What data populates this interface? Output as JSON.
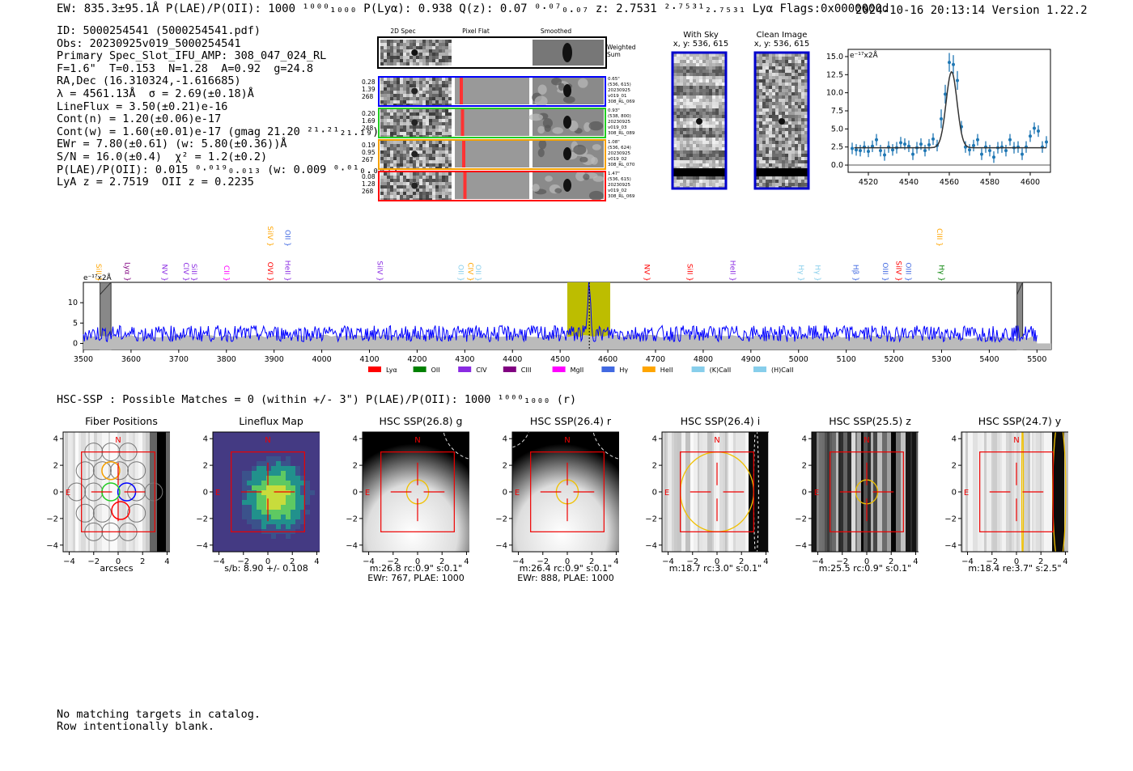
{
  "header": {
    "line": "EW: 835.3±95.1Å  P(LAE)/P(OII): 1000 ¹⁰⁰⁰₁₀₀₀  P(Lyα): 0.938  Q(z): 0.07 ⁰·⁰⁷₀.₀₇  z: 2.7531 ²·⁷⁵³¹₂.₇₅₃₁ Lyα  Flags:0x0000000d",
    "datestamp": "2024-10-16 20:13:14  Version 1.22.2"
  },
  "info": {
    "lines": [
      "ID: 5000254541 (5000254541.pdf)",
      "Obs: 20230925v019_5000254541",
      "Primary Spec_Slot_IFU_AMP: 308_047_024_RL",
      "F=1.6\"  T=0.153  N=1.28  A=0.92  g=24.8",
      "RA,Dec (16.310324,-1.616685)",
      "λ = 4561.13Å  σ = 2.69(±0.18)Å",
      "LineFlux = 3.50(±0.21)e-16",
      "Cont(n) = 1.20(±0.06)e-17",
      "Cont(w) = 1.60(±0.01)e-17 (gmag 21.20 ²¹·²¹₂₁.₁₉)",
      "EWr = 7.80(±0.61) (w: 5.80(±0.36))Å",
      "S/N = 16.0(±0.4)  χ² = 1.2(±0.2)",
      "P(LAE)/P(OII): 0.015 ⁰·⁰¹⁹₀.₀₁₃ (w: 0.009 ⁰·⁰¹₀.₀₀₇)",
      "LyA z = 2.7519  OII z = 0.2235"
    ]
  },
  "cutouts": {
    "col_labels": [
      "2D Spec",
      "Pixel Flat",
      "Smoothed"
    ],
    "weighted_sum_label": "Weighted Sum",
    "rows": [
      {
        "left": [
          "0.28",
          "1.39",
          "268"
        ],
        "right": [
          "0.65\"",
          "(536, 615)",
          "20230925",
          "v019_01",
          "308_RL_069"
        ],
        "color": "#0000ff"
      },
      {
        "left": [
          "0.20",
          "1.69",
          "248"
        ],
        "right": [
          "0.93\"",
          "(538, 800)",
          "20230925",
          "v019_03",
          "308_RL_089"
        ],
        "color": "#22cc22"
      },
      {
        "left": [
          "0.19",
          "0.95",
          "267"
        ],
        "right": [
          "1.08\"",
          "(536, 624)",
          "20230925",
          "v019_02",
          "308_RL_070"
        ],
        "color": "#f5a000"
      },
      {
        "left": [
          "0.08",
          "1.28",
          "268"
        ],
        "right": [
          "1.47\"",
          "(536, 615)",
          "20230925",
          "v019_02",
          "308_RL_069"
        ],
        "color": "#ff0000"
      }
    ]
  },
  "sky": {
    "with_sky_title": "With Sky",
    "with_sky_coords": "x, y: 536, 615",
    "clean_title": "Clean Image",
    "clean_coords": "x, y: 536, 615"
  },
  "hsc_line": "HSC-SSP : Possible Matches = 0 (within +/- 3\")  P(LAE)/P(OII): 1000 ¹⁰⁰⁰₁₀₀₀ (r)",
  "panels": [
    {
      "title": "Fiber Positions",
      "caption": [
        "arcsecs"
      ]
    },
    {
      "title": "Lineflux Map",
      "caption": [
        "s/b: 8.90 +/- 0.108"
      ]
    },
    {
      "title": "HSC SSP(26.8) g",
      "caption": [
        "m:26.8 rc:0.9\"  s:0.1\"",
        "EWr: 767, PLAE: 1000"
      ]
    },
    {
      "title": "HSC SSP(26.4) r",
      "caption": [
        "m:26.4 rc:0.9\"  s:0.1\"",
        "EWr: 888, PLAE: 1000"
      ]
    },
    {
      "title": "HSC SSP(26.4) i",
      "caption": [
        "m:18.7 rc:3.0\"  s:0.1\""
      ]
    },
    {
      "title": "HSC SSP(25.5) z",
      "caption": [
        "m:25.5 rc:0.9\"  s:0.1\""
      ]
    },
    {
      "title": "HSC SSP(24.7) y",
      "caption": [
        "m:18.4  re:3.7\"  s:2.5\""
      ]
    }
  ],
  "panel_marks": {
    "north": "N",
    "east": "E"
  },
  "footer": {
    "lines": [
      "No matching targets in catalog.",
      "Row intentionally blank."
    ]
  },
  "colors": {
    "lya": "#ff0000",
    "oii": "#008000",
    "civ": "#8a2be2",
    "ciii": "#800080",
    "mgii": "#ff00ff",
    "hgamma": "#4169e1",
    "heii": "#ffa500",
    "kcaii": "#87ceeb",
    "hcaii": "#87ceeb",
    "spectrum": "#0000ff",
    "fit": "#333333",
    "points": "#1f77b4"
  },
  "chart_data": [
    {
      "type": "scatter",
      "title": "",
      "xlabel": "",
      "ylabel": "e⁻¹⁷x2Å",
      "xlim": [
        4510,
        4610
      ],
      "ylim": [
        -1,
        16
      ],
      "xticks": [
        4520,
        4540,
        4560,
        4580,
        4600
      ],
      "yticks": [
        0.0,
        2.5,
        5.0,
        7.5,
        10.0,
        12.5,
        15.0
      ],
      "x": [
        4512,
        4514,
        4516,
        4518,
        4520,
        4522,
        4524,
        4526,
        4528,
        4530,
        4532,
        4534,
        4536,
        4538,
        4540,
        4542,
        4544,
        4546,
        4548,
        4550,
        4552,
        4554,
        4556,
        4558,
        4560,
        4562,
        4564,
        4566,
        4568,
        4570,
        4572,
        4574,
        4576,
        4578,
        4580,
        4582,
        4584,
        4586,
        4588,
        4590,
        4592,
        4594,
        4596,
        4598,
        4600,
        4602,
        4604,
        4606,
        4608
      ],
      "y": [
        2.3,
        2.1,
        2.0,
        2.5,
        1.9,
        2.6,
        3.5,
        2.0,
        1.4,
        2.5,
        2.1,
        2.4,
        3.1,
        2.9,
        2.6,
        1.5,
        2.4,
        2.9,
        2.0,
        2.8,
        3.6,
        2.7,
        6.4,
        9.8,
        14.2,
        13.9,
        11.7,
        5.3,
        2.5,
        2.1,
        2.7,
        3.5,
        1.5,
        2.5,
        2.0,
        1.1,
        2.4,
        2.5,
        2.0,
        3.5,
        2.4,
        2.5,
        1.5,
        2.5,
        4.0,
        5.1,
        4.7,
        2.5,
        3.2
      ],
      "fit": {
        "center": 4561.13,
        "sigma": 2.69,
        "continuum": 2.4,
        "amplitude": 10.5
      },
      "hline": 0
    },
    {
      "type": "line",
      "title": "",
      "xlabel": "",
      "ylabel": "e⁻¹⁷x2Å",
      "xlim": [
        3500,
        5530
      ],
      "ylim": [
        -1.5,
        15
      ],
      "xticks": [
        3500,
        3600,
        3700,
        3800,
        3900,
        4000,
        4100,
        4200,
        4300,
        4400,
        4500,
        4600,
        4700,
        4800,
        4900,
        5000,
        5100,
        5200,
        5300,
        5400,
        5500
      ],
      "yticks": [
        0,
        5,
        10
      ],
      "continuum_level": 2.4,
      "noise_amplitude": 2.0,
      "emission_line": {
        "center": 4561.13,
        "peak": 14.5
      },
      "highlight_band": [
        4515,
        4605
      ],
      "masked_bands": [
        [
          3535,
          3558
        ],
        [
          5458,
          5470
        ]
      ],
      "line_markers": [
        {
          "label": "SiII",
          "x": 3522,
          "color": "#ffa500",
          "row": "low"
        },
        {
          "label": "Lyα",
          "x": 3582,
          "color": "#800080",
          "row": "low"
        },
        {
          "label": "NV",
          "x": 3660,
          "color": "#8a2be2",
          "row": "low"
        },
        {
          "label": "CIV",
          "x": 3705,
          "color": "#8a2be2",
          "row": "low"
        },
        {
          "label": "SiII",
          "x": 3722,
          "color": "#8a2be2",
          "row": "low"
        },
        {
          "label": "CII",
          "x": 3790,
          "color": "#ff00ff",
          "row": "low"
        },
        {
          "label": "OVI",
          "x": 3882,
          "color": "#ff0000",
          "row": "low"
        },
        {
          "label": "SiIV",
          "x": 3882,
          "color": "#ffa500",
          "row": "high"
        },
        {
          "label": "HeII",
          "x": 3918,
          "color": "#8a2be2",
          "row": "low"
        },
        {
          "label": "OII",
          "x": 3918,
          "color": "#4169e1",
          "row": "high"
        },
        {
          "label": "SiIV",
          "x": 4112,
          "color": "#8a2be2",
          "row": "low"
        },
        {
          "label": "OII",
          "x": 4282,
          "color": "#87ceeb",
          "row": "low"
        },
        {
          "label": "CIV",
          "x": 4302,
          "color": "#ffa500",
          "row": "low"
        },
        {
          "label": "OII",
          "x": 4318,
          "color": "#87ceeb",
          "row": "low"
        },
        {
          "label": "NV",
          "x": 4672,
          "color": "#ff0000",
          "row": "low"
        },
        {
          "label": "SiII",
          "x": 4762,
          "color": "#ff0000",
          "row": "low"
        },
        {
          "label": "HeII",
          "x": 4852,
          "color": "#8a2be2",
          "row": "low"
        },
        {
          "label": "Hγ",
          "x": 4995,
          "color": "#87ceeb",
          "row": "low"
        },
        {
          "label": "Hγ",
          "x": 5030,
          "color": "#87ceeb",
          "row": "low"
        },
        {
          "label": "Hβ",
          "x": 5110,
          "color": "#4169e1",
          "row": "low"
        },
        {
          "label": "OIII",
          "x": 5172,
          "color": "#4169e1",
          "row": "low"
        },
        {
          "label": "SiIV",
          "x": 5200,
          "color": "#ff0000",
          "row": "low"
        },
        {
          "label": "OIII",
          "x": 5220,
          "color": "#4169e1",
          "row": "low"
        },
        {
          "label": "CIII",
          "x": 5286,
          "color": "#ffa500",
          "row": "high"
        },
        {
          "label": "Hγ",
          "x": 5290,
          "color": "#008000",
          "row": "low"
        }
      ],
      "legend": [
        {
          "label": "Lyα",
          "color": "#ff0000"
        },
        {
          "label": "OII",
          "color": "#008000"
        },
        {
          "label": "CIV",
          "color": "#8a2be2"
        },
        {
          "label": "CIII",
          "color": "#800080"
        },
        {
          "label": "MgII",
          "color": "#ff00ff"
        },
        {
          "label": "Hγ",
          "color": "#4169e1"
        },
        {
          "label": "HeII",
          "color": "#ffa500"
        },
        {
          "label": "(K)CaII",
          "color": "#87ceeb"
        },
        {
          "label": "(H)CaII",
          "color": "#87ceeb"
        }
      ],
      "legend_position": "bottom"
    }
  ],
  "panel_axis": {
    "ticks": [
      -4,
      -2,
      0,
      2,
      4
    ]
  }
}
